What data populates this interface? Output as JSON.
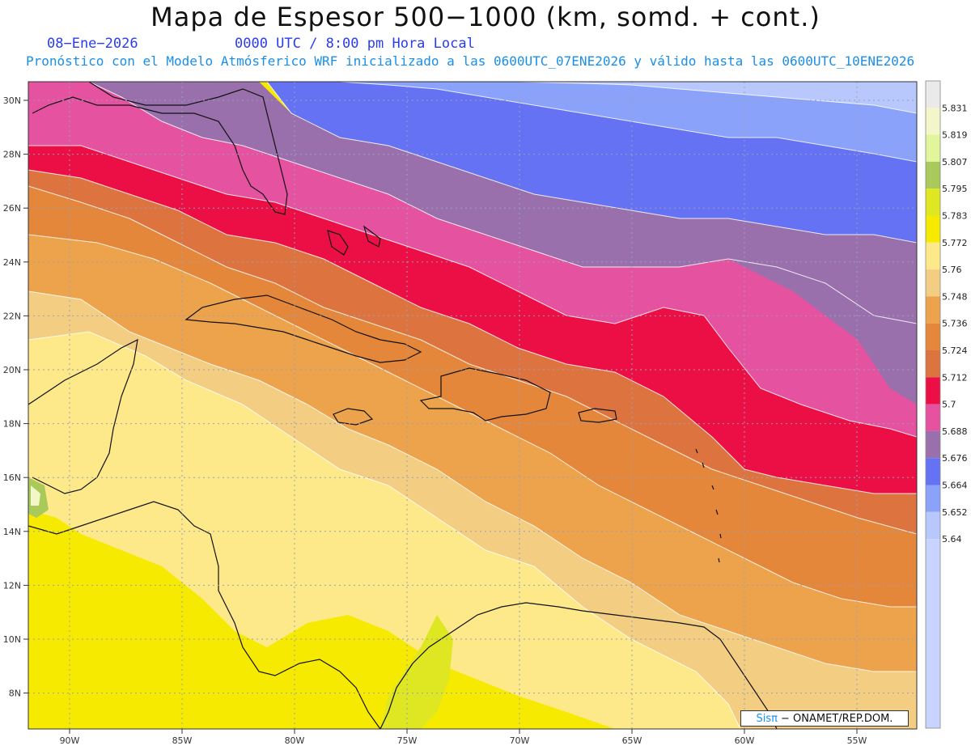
{
  "header": {
    "title": "Mapa de Espesor 500−1000 (km, somd. + cont.)",
    "date": "08−Ene−2026",
    "time": "0000 UTC / 8:00 pm Hora Local",
    "forecast_note": "Pronóstico con el Modelo Atmósferico WRF inicializado a las 0600UTC_07ENE2026 y válido hasta las  0600UTC_10ENE2026"
  },
  "axes": {
    "lat_labels": [
      "30N",
      "28N",
      "26N",
      "24N",
      "22N",
      "20N",
      "18N",
      "16N",
      "14N",
      "12N",
      "10N",
      "8N"
    ],
    "lon_labels": [
      "90W",
      "85W",
      "80W",
      "75W",
      "70W",
      "65W",
      "60W",
      "55W"
    ]
  },
  "legend": {
    "labels": [
      "5.831",
      "5.819",
      "5.807",
      "5.795",
      "5.783",
      "5.772",
      "5.76",
      "5.748",
      "5.736",
      "5.724",
      "5.712",
      "5.7",
      "5.688",
      "5.676",
      "5.664",
      "5.652",
      "5.64"
    ],
    "colors": [
      "#eaeaea",
      "#f2f6c8",
      "#e1f59a",
      "#a9c95a",
      "#dfe622",
      "#f6ea00",
      "#fde98a",
      "#f2cd82",
      "#eda24c",
      "#e4873a",
      "#dd7440",
      "#ec0f45",
      "#e452a0",
      "#9a70ac",
      "#6472f3",
      "#8aa2f9",
      "#b8c8fd"
    ],
    "bottom_color": "#c8d4ff"
  },
  "credit": {
    "brand": "Sisπ",
    "org": "− ONAMET/REP.DOM."
  }
}
